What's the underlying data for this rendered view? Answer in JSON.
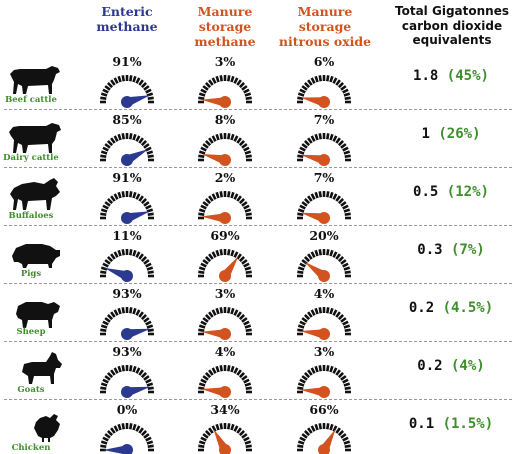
{
  "headers": {
    "enteric": "Enteric\nmethane",
    "manure_methane": "Manure\nstorage\nmethane",
    "manure_n2o": "Manure\nstorage\nnitrous oxide",
    "total": "Total Gigatonnes\ncarbon dioxide\nequivalents"
  },
  "colors": {
    "enteric": "#2B3990",
    "manure": "#D2531F",
    "label": "#3E8E2B",
    "share": "#3E8E2B"
  },
  "rows": [
    {
      "animal": "Beef cattle",
      "icon": "beef-cattle-icon",
      "enteric": "91%",
      "enteric_val": 91,
      "mm": "3%",
      "mm_val": 3,
      "n2o": "6%",
      "n2o_val": 6,
      "total": "1.8",
      "share": "(45%)"
    },
    {
      "animal": "Dairy cattle",
      "icon": "dairy-cattle-icon",
      "enteric": "85%",
      "enteric_val": 85,
      "mm": "8%",
      "mm_val": 8,
      "n2o": "7%",
      "n2o_val": 7,
      "total": "1",
      "share": "(26%)"
    },
    {
      "animal": "Buffaloes",
      "icon": "buffalo-icon",
      "enteric": "91%",
      "enteric_val": 91,
      "mm": "2%",
      "mm_val": 2,
      "n2o": "7%",
      "n2o_val": 7,
      "total": "0.5",
      "share": "(12%)"
    },
    {
      "animal": "Pigs",
      "icon": "pig-icon",
      "enteric": "11%",
      "enteric_val": 11,
      "mm": "69%",
      "mm_val": 69,
      "n2o": "20%",
      "n2o_val": 20,
      "total": "0.3",
      "share": "(7%)"
    },
    {
      "animal": "Sheep",
      "icon": "sheep-icon",
      "enteric": "93%",
      "enteric_val": 93,
      "mm": "3%",
      "mm_val": 3,
      "n2o": "4%",
      "n2o_val": 4,
      "total": "0.2",
      "share": "(4.5%)"
    },
    {
      "animal": "Goats",
      "icon": "goat-icon",
      "enteric": "93%",
      "enteric_val": 93,
      "mm": "4%",
      "mm_val": 4,
      "n2o": "3%",
      "n2o_val": 3,
      "total": "0.2",
      "share": "(4%)"
    },
    {
      "animal": "Chicken",
      "icon": "chicken-icon",
      "enteric": "0%",
      "enteric_val": 0,
      "mm": "34%",
      "mm_val": 34,
      "n2o": "66%",
      "n2o_val": 66,
      "total": "0.1",
      "share": "(1.5%)"
    }
  ]
}
